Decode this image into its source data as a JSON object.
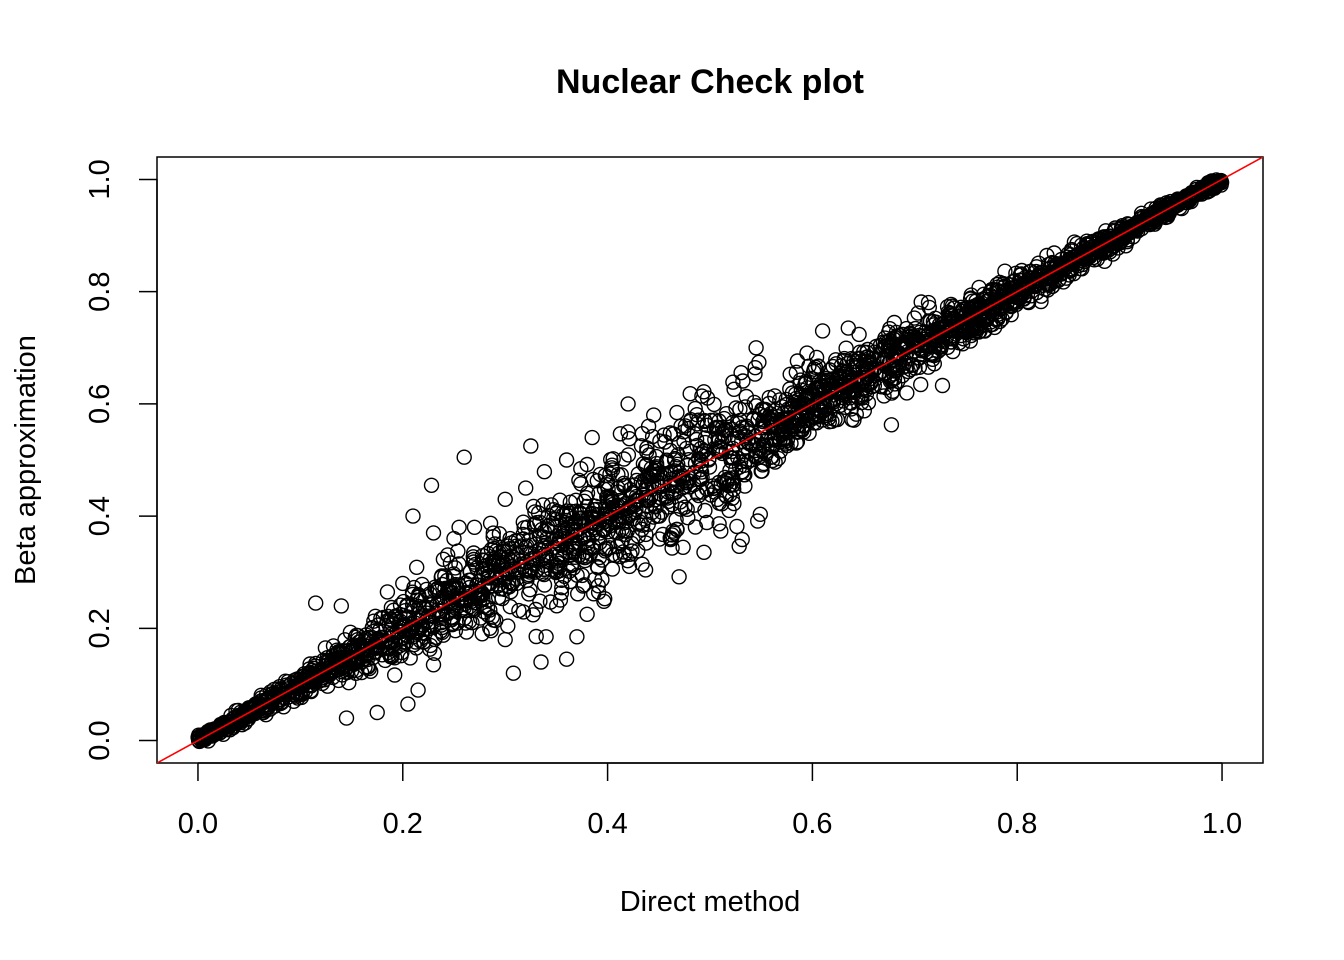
{
  "chart_data": {
    "type": "scatter",
    "title": "Nuclear Check plot",
    "xlabel": "Direct method",
    "ylabel": "Beta approximation",
    "xlim": [
      -0.04,
      1.04
    ],
    "ylim": [
      -0.04,
      1.04
    ],
    "x_ticks": [
      0.0,
      0.2,
      0.4,
      0.6,
      0.8,
      1.0
    ],
    "y_ticks": [
      0.0,
      0.2,
      0.4,
      0.6,
      0.8,
      1.0
    ],
    "x_tick_labels": [
      "0.0",
      "0.2",
      "0.4",
      "0.6",
      "0.8",
      "1.0"
    ],
    "y_tick_labels": [
      "0.0",
      "0.2",
      "0.4",
      "0.6",
      "0.8",
      "1.0"
    ],
    "grid": false,
    "marker": "open-circle",
    "point_color": "#000000",
    "reference_line": {
      "type": "identity",
      "slope": 1,
      "intercept": 0,
      "color": "#ff0000"
    },
    "outliers": [
      [
        0.26,
        0.505
      ],
      [
        0.325,
        0.525
      ],
      [
        0.228,
        0.455
      ],
      [
        0.21,
        0.4
      ],
      [
        0.23,
        0.37
      ],
      [
        0.115,
        0.245
      ],
      [
        0.14,
        0.24
      ],
      [
        0.185,
        0.265
      ],
      [
        0.42,
        0.6
      ],
      [
        0.385,
        0.54
      ],
      [
        0.545,
        0.7
      ],
      [
        0.36,
        0.145
      ],
      [
        0.335,
        0.14
      ],
      [
        0.308,
        0.12
      ],
      [
        0.37,
        0.185
      ],
      [
        0.38,
        0.225
      ],
      [
        0.34,
        0.185
      ],
      [
        0.445,
        0.58
      ],
      [
        0.3,
        0.43
      ],
      [
        0.27,
        0.38
      ],
      [
        0.25,
        0.36
      ],
      [
        0.2,
        0.28
      ],
      [
        0.23,
        0.135
      ],
      [
        0.215,
        0.09
      ],
      [
        0.205,
        0.065
      ],
      [
        0.16,
        0.14
      ],
      [
        0.465,
        0.37
      ],
      [
        0.39,
        0.31
      ],
      [
        0.61,
        0.73
      ],
      [
        0.635,
        0.735
      ],
      [
        0.68,
        0.745
      ],
      [
        0.495,
        0.41
      ],
      [
        0.55,
        0.48
      ],
      [
        0.175,
        0.05
      ],
      [
        0.145,
        0.04
      ],
      [
        0.44,
        0.56
      ],
      [
        0.42,
        0.55
      ],
      [
        0.32,
        0.45
      ],
      [
        0.255,
        0.38
      ],
      [
        0.285,
        0.2
      ],
      [
        0.3,
        0.18
      ],
      [
        0.345,
        0.42
      ],
      [
        0.36,
        0.5
      ],
      [
        0.4,
        0.46
      ],
      [
        0.47,
        0.53
      ]
    ]
  }
}
